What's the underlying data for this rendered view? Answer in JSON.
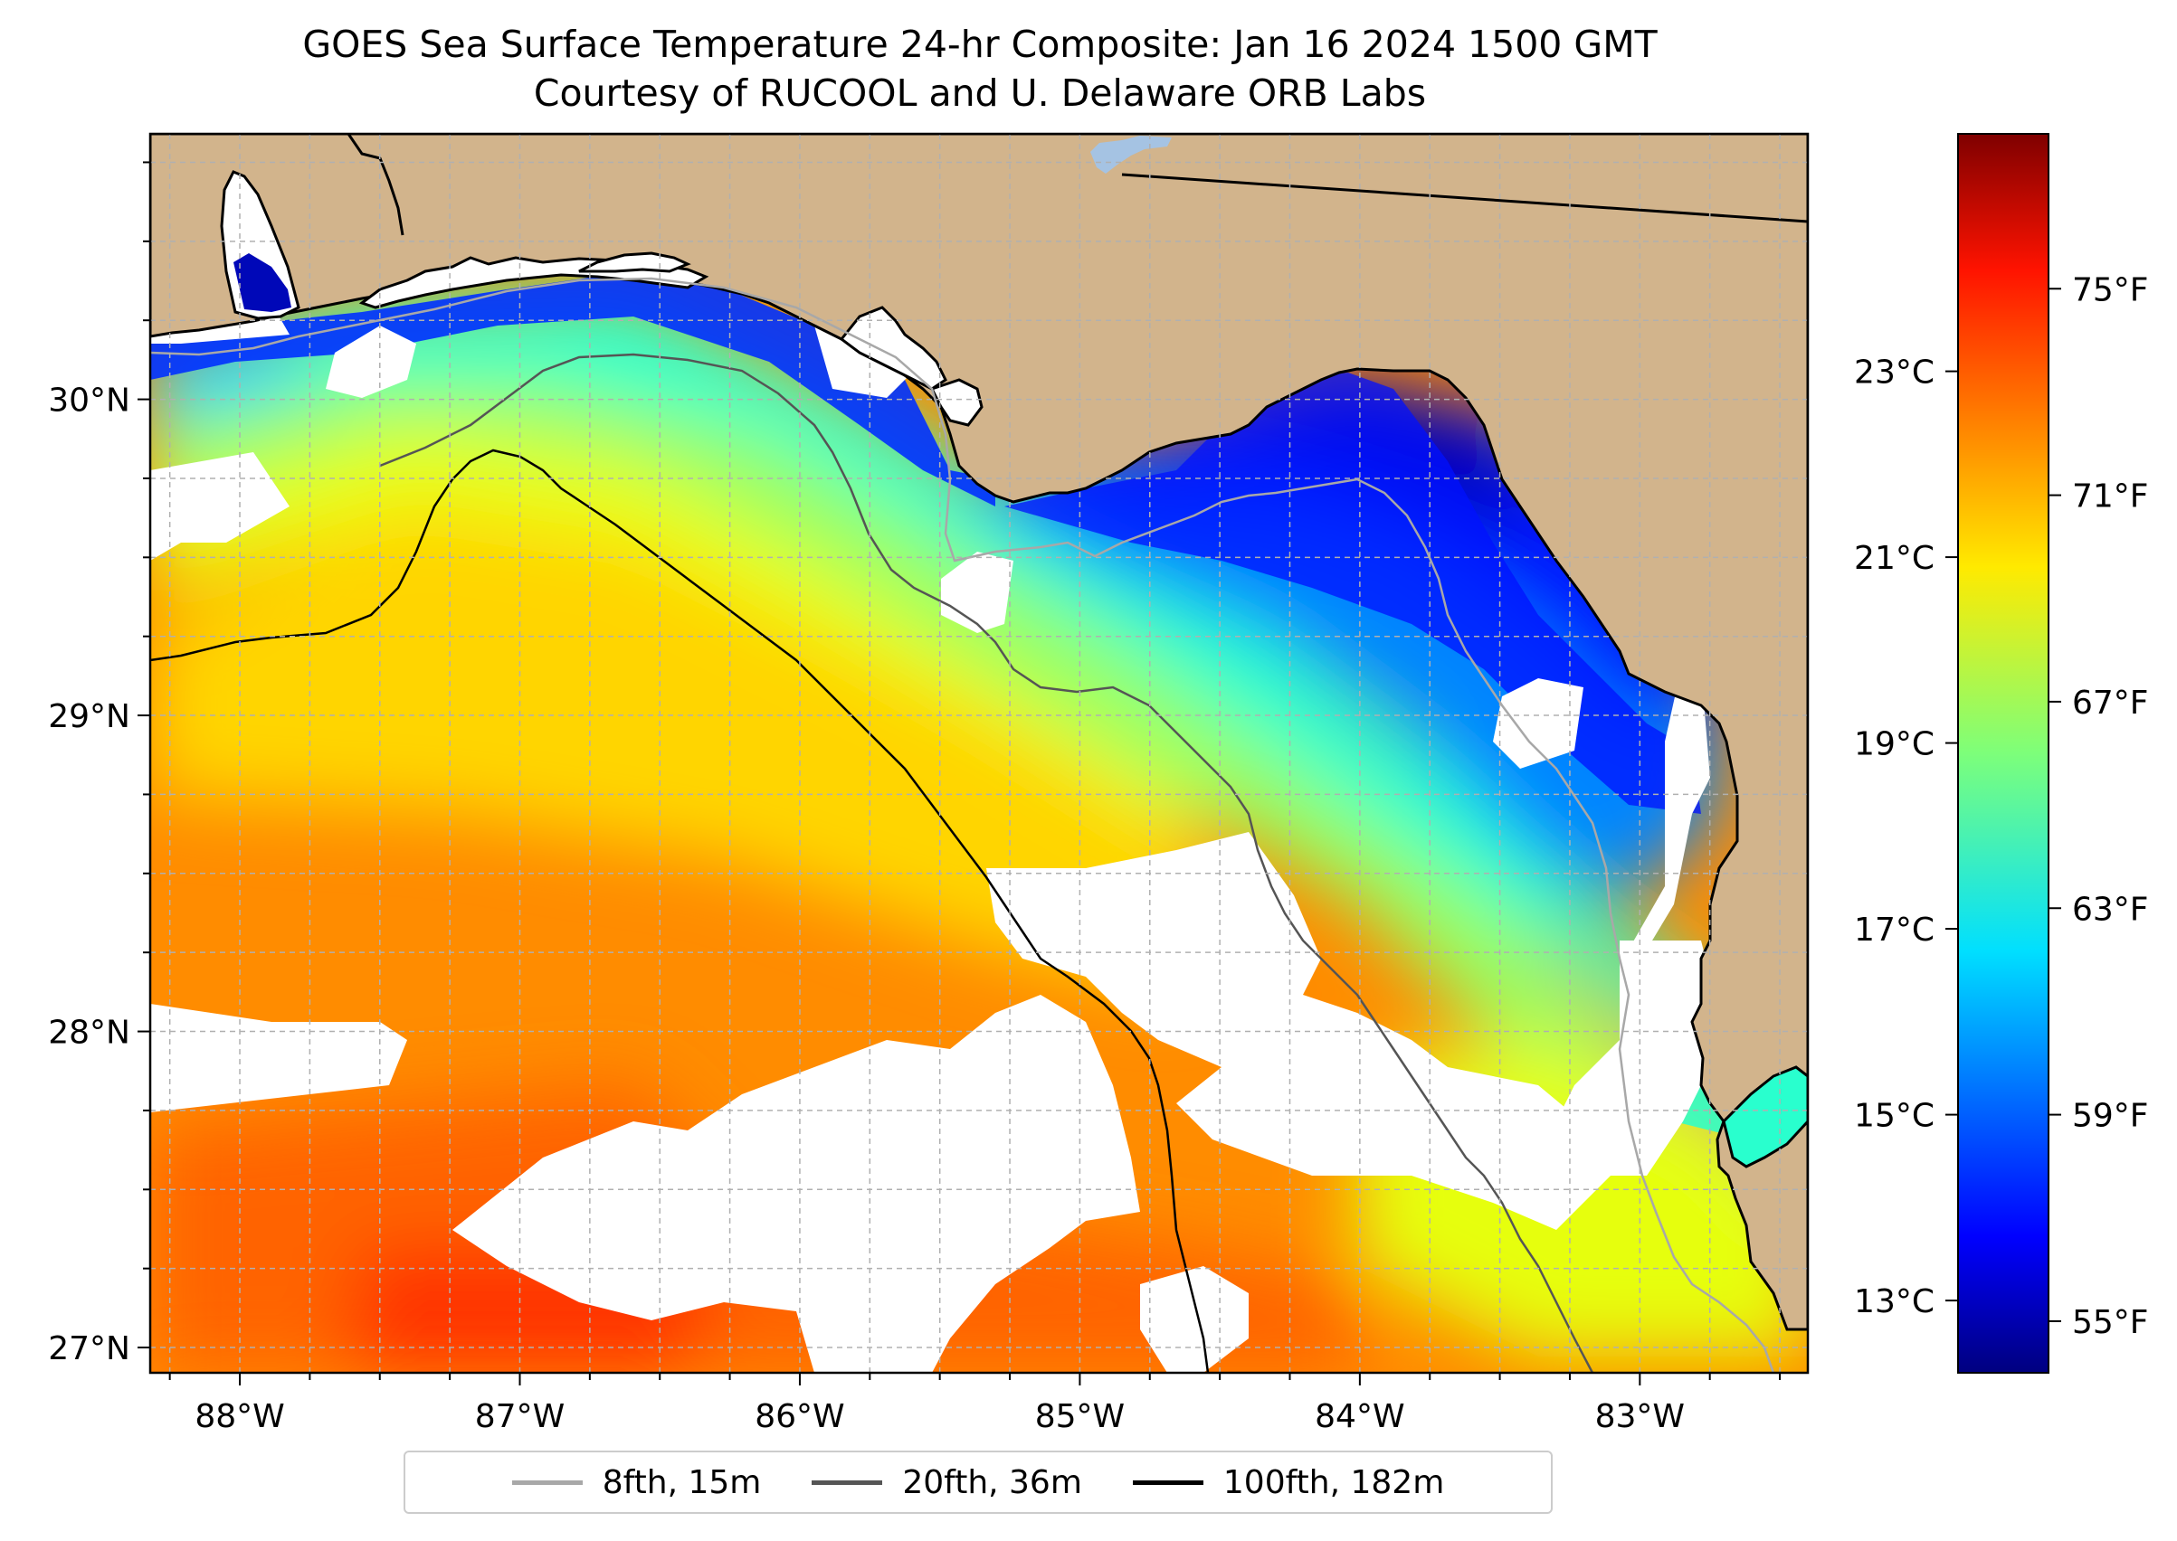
{
  "title": {
    "line1": "GOES Sea Surface Temperature 24-hr Composite: Jan 16 2024 1500 GMT",
    "line2": "Courtesy of RUCOOL and U. Delaware ORB Labs"
  },
  "map": {
    "extent": {
      "lon_min": -88.32,
      "lon_max": -82.4,
      "lat_min": 26.92,
      "lat_max": 30.84
    },
    "lon_ticks": [
      {
        "value": -88,
        "label": "88°W"
      },
      {
        "value": -87,
        "label": "87°W"
      },
      {
        "value": -86,
        "label": "86°W"
      },
      {
        "value": -85,
        "label": "85°W"
      },
      {
        "value": -84,
        "label": "84°W"
      },
      {
        "value": -83,
        "label": "83°W"
      }
    ],
    "lat_ticks": [
      {
        "value": 30,
        "label": "30°N"
      },
      {
        "value": 29,
        "label": "29°N"
      },
      {
        "value": 28,
        "label": "28°N"
      },
      {
        "value": 27,
        "label": "27°N"
      }
    ],
    "colors": {
      "land": "#d2b48c",
      "no_data": "#ffffff",
      "lake": "#a5c3e3",
      "coastline": "#000000",
      "grid": "#b0b0b0"
    },
    "isobaths": [
      {
        "label": "8fth, 15m",
        "color": "#a8a8a8"
      },
      {
        "label": "20fth, 36m",
        "color": "#555555"
      },
      {
        "label": "100fth, 182m",
        "color": "#000000"
      }
    ]
  },
  "colorbar": {
    "colormap": "jet",
    "range_f": [
      54,
      78
    ],
    "fahrenheit_ticks": [
      {
        "value": 55,
        "label": "55°F"
      },
      {
        "value": 59,
        "label": "59°F"
      },
      {
        "value": 63,
        "label": "63°F"
      },
      {
        "value": 67,
        "label": "67°F"
      },
      {
        "value": 71,
        "label": "71°F"
      },
      {
        "value": 75,
        "label": "75°F"
      }
    ],
    "celsius_ticks": [
      {
        "value": 13,
        "label": "13°C"
      },
      {
        "value": 15,
        "label": "15°C"
      },
      {
        "value": 17,
        "label": "17°C"
      },
      {
        "value": 19,
        "label": "19°C"
      },
      {
        "value": 21,
        "label": "21°C"
      },
      {
        "value": 23,
        "label": "23°C"
      }
    ]
  }
}
